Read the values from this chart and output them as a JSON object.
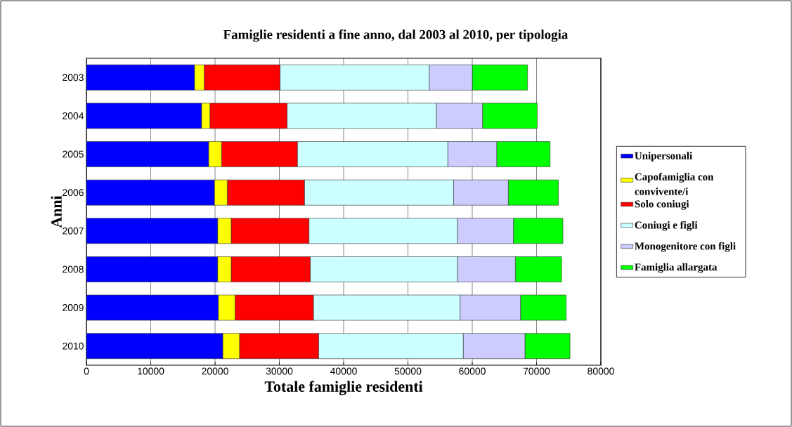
{
  "chart_data": {
    "type": "bar",
    "orientation": "horizontal",
    "stacked": true,
    "title": "Famiglie residenti a fine anno, dal 2003 al 2010, per tipologia",
    "xlabel": "Totale famiglie residenti",
    "ylabel": "Anni",
    "categories": [
      "2003",
      "2004",
      "2005",
      "2006",
      "2007",
      "2008",
      "2009",
      "2010"
    ],
    "series": [
      {
        "name": "Unipersonali",
        "color": "#0000ff",
        "values": [
          16800,
          17900,
          19000,
          19900,
          20400,
          20400,
          20500,
          21200
        ]
      },
      {
        "name": "Capofamiglia con convivente/i",
        "color": "#ffff00",
        "values": [
          1500,
          1300,
          2000,
          2000,
          2100,
          2100,
          2600,
          2600
        ]
      },
      {
        "name": "Solo coniugi",
        "color": "#ff0000",
        "values": [
          11800,
          12000,
          11800,
          12000,
          12100,
          12300,
          12200,
          12300
        ]
      },
      {
        "name": "Coniugi e figli",
        "color": "#ccffff",
        "values": [
          23200,
          23200,
          23400,
          23200,
          23100,
          22900,
          22800,
          22500
        ]
      },
      {
        "name": "Monogenitore con figli",
        "color": "#ccccff",
        "values": [
          6700,
          7200,
          7600,
          8500,
          8700,
          9000,
          9400,
          9600
        ]
      },
      {
        "name": "Famiglia allargata",
        "color": "#00ff00",
        "values": [
          8600,
          8500,
          8300,
          7800,
          7700,
          7200,
          7100,
          7000
        ]
      }
    ],
    "xlim": [
      0,
      80000
    ],
    "xticks": [
      0,
      10000,
      20000,
      30000,
      40000,
      50000,
      60000,
      70000,
      80000
    ],
    "grid": "x",
    "legend": "right"
  }
}
